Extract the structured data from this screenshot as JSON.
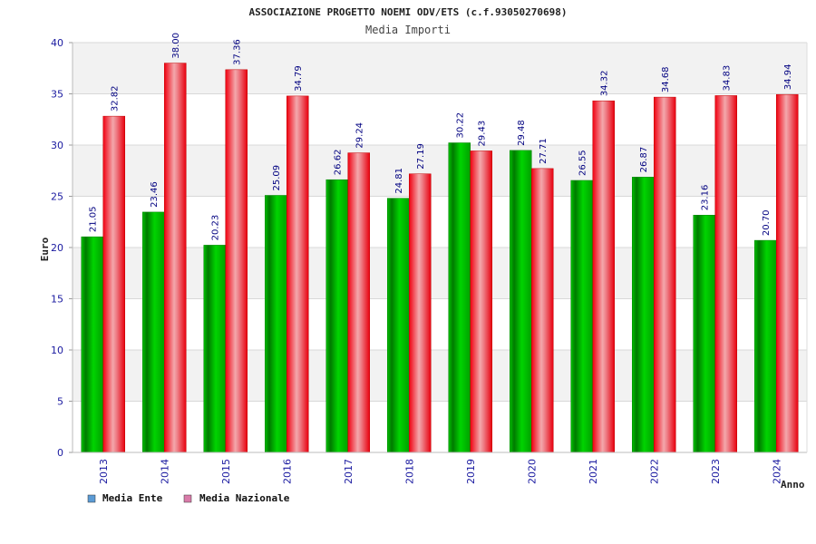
{
  "chart_data": {
    "type": "bar",
    "title": "ASSOCIAZIONE PROGETTO NOEMI ODV/ETS (c.f.93050270698)",
    "subtitle": "Media Importi",
    "xlabel": "Anno",
    "ylabel": "Euro",
    "ylim": [
      0,
      40
    ],
    "yticks": [
      0,
      5,
      10,
      15,
      20,
      25,
      30,
      35,
      40
    ],
    "grid": true,
    "legend_position": "bottom-left",
    "categories": [
      "2013",
      "2014",
      "2015",
      "2016",
      "2017",
      "2018",
      "2019",
      "2020",
      "2021",
      "2022",
      "2023",
      "2024"
    ],
    "series": [
      {
        "name": "Media Ente",
        "color": "#00b000",
        "legend_color": "#5b9bd5",
        "values": [
          21.05,
          23.46,
          20.23,
          25.09,
          26.62,
          24.81,
          30.22,
          29.48,
          26.55,
          26.87,
          23.16,
          20.7
        ],
        "labels": [
          "21.05",
          "23.46",
          "20.23",
          "25.09",
          "26.62",
          "24.81",
          "30.22",
          "29.48",
          "26.55",
          "26.87",
          "23.16",
          "20.70"
        ]
      },
      {
        "name": "Media Nazionale",
        "color": "#e0101a",
        "legend_color": "#d97ba9",
        "values": [
          32.82,
          38.0,
          37.36,
          34.79,
          29.24,
          27.19,
          29.43,
          27.71,
          34.32,
          34.68,
          34.83,
          34.94
        ],
        "labels": [
          "32.82",
          "38.00",
          "37.36",
          "34.79",
          "29.24",
          "27.19",
          "29.43",
          "27.71",
          "34.32",
          "34.68",
          "34.83",
          "34.94"
        ]
      }
    ]
  }
}
